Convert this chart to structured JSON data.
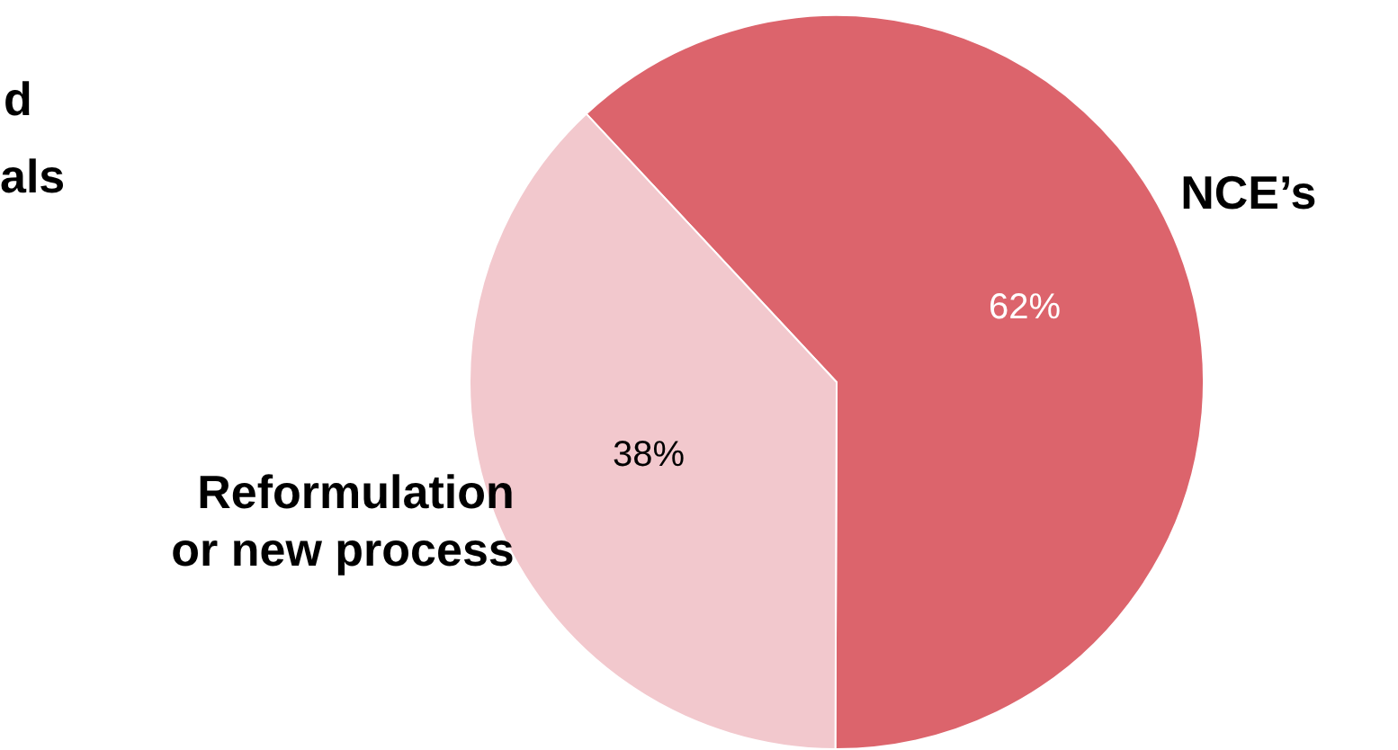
{
  "chart_data": {
    "type": "pie",
    "categories": [
      "NCE’s",
      "Reformulation\nor new process"
    ],
    "values": [
      62,
      38
    ],
    "colors": [
      "#dc646c",
      "#f2c8cd"
    ],
    "value_labels": [
      "62%",
      "38%"
    ],
    "annotations": [
      "d",
      "als"
    ]
  }
}
